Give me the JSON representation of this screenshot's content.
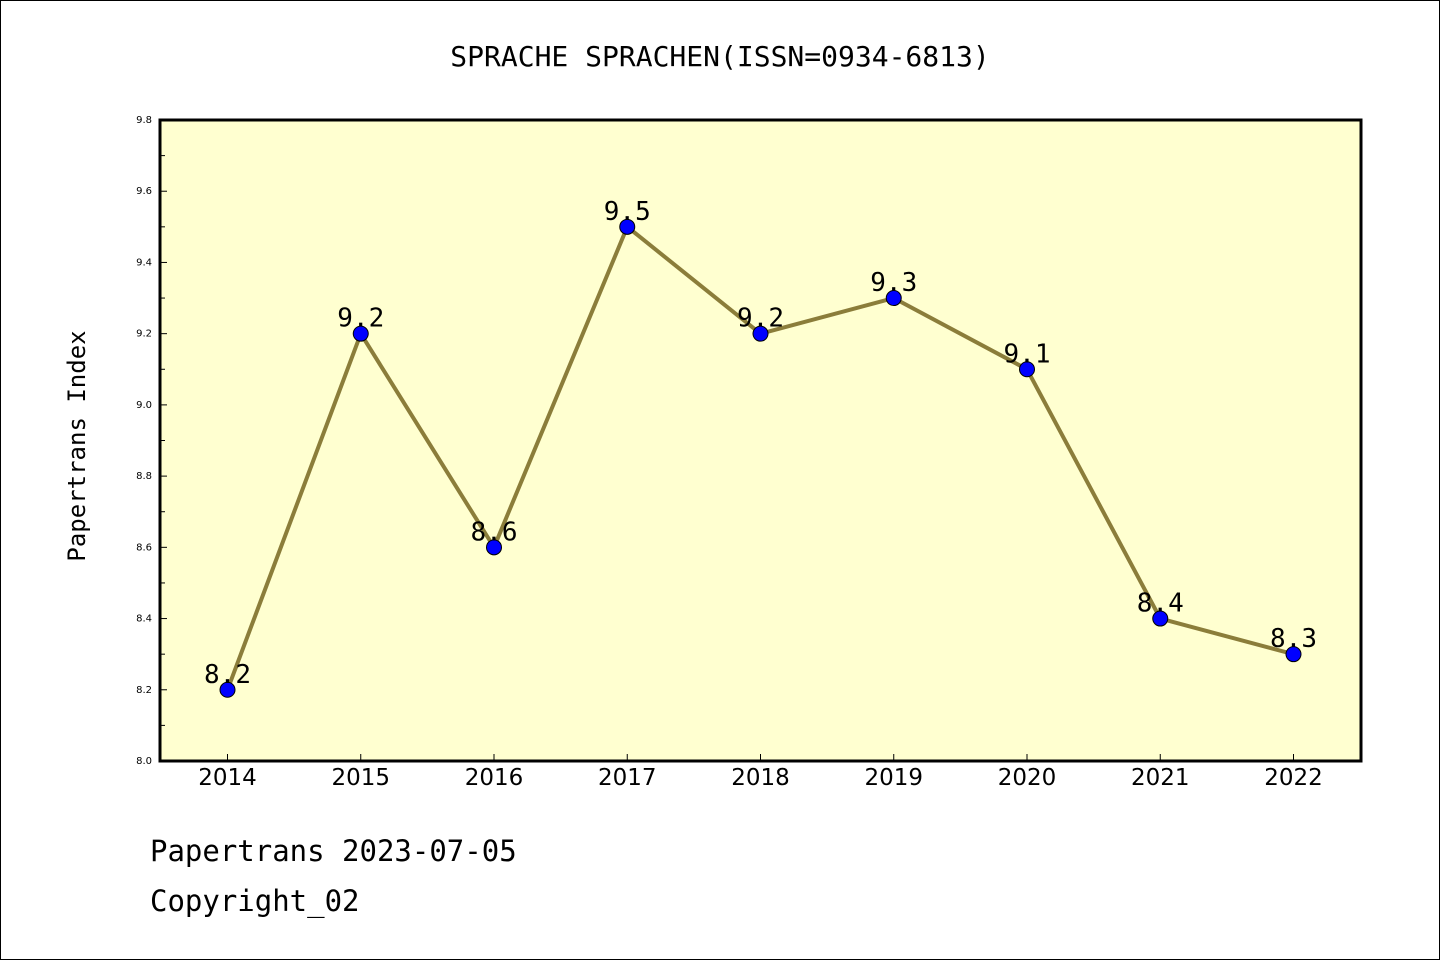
{
  "chart_data": {
    "type": "line",
    "title": "SPRACHE SPRACHEN(ISSN=0934-6813)",
    "xlabel": "",
    "ylabel": "Papertrans Index",
    "categories": [
      "2014",
      "2015",
      "2016",
      "2017",
      "2018",
      "2019",
      "2020",
      "2021",
      "2022"
    ],
    "values": [
      8.2,
      9.2,
      8.6,
      9.5,
      9.2,
      9.3,
      9.1,
      8.4,
      8.3
    ],
    "data_labels": [
      "8.2",
      "9.2",
      "8.6",
      "9.5",
      "9.2",
      "9.3",
      "9.1",
      "8.4",
      "8.3"
    ],
    "ylim": [
      8.0,
      9.8
    ],
    "y_ticks": [
      "8.0",
      "8.2",
      "8.4",
      "8.6",
      "8.8",
      "9.0",
      "9.2",
      "9.4",
      "9.6",
      "9.8"
    ],
    "grid": false,
    "colors": {
      "plot_background": "#ffffd0",
      "line": "#8b7d3a",
      "marker": "#0000ff"
    }
  },
  "footer": {
    "line1": "Papertrans 2023-07-05",
    "line2": "Copyright_02"
  }
}
